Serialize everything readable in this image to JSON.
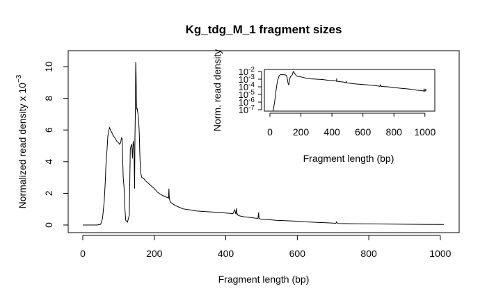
{
  "chart_data": [
    {
      "type": "line",
      "title": "Kg_tdg_M_1 fragment sizes",
      "xlabel": "Fragment length (bp)",
      "ylabel": "Normalized read density x 10",
      "ylabel_exponent": "−3",
      "xlim": [
        0,
        1010
      ],
      "ylim": [
        0,
        10.4
      ],
      "x_ticks": [
        "0",
        "200",
        "400",
        "600",
        "800",
        "1000"
      ],
      "y_ticks": [
        "0",
        "2",
        "4",
        "6",
        "8",
        "10"
      ],
      "grid": false,
      "series": [
        {
          "x": [
            0,
            40,
            50,
            55,
            60,
            63,
            65,
            68,
            70,
            72,
            75,
            78,
            80,
            83,
            85,
            90,
            95,
            100,
            103,
            106,
            108,
            110,
            113,
            116,
            118,
            120,
            125,
            130,
            133,
            135,
            137,
            139,
            141,
            143,
            145,
            146,
            147,
            148,
            149,
            150,
            151,
            152,
            153,
            154,
            155,
            156,
            158,
            160,
            162,
            165,
            170,
            175,
            180,
            185,
            190,
            195,
            200,
            210,
            220,
            230,
            240,
            241,
            242,
            243,
            244,
            245,
            250,
            260,
            270,
            280,
            300,
            320,
            340,
            360,
            380,
            400,
            420,
            425,
            428,
            430,
            431,
            432,
            434,
            436,
            438,
            440,
            445,
            450,
            460,
            470,
            480,
            490,
            492,
            493,
            494,
            496,
            500,
            520,
            540,
            560,
            580,
            600,
            620,
            640,
            660,
            680,
            700,
            708,
            710,
            712,
            720,
            760,
            800,
            850,
            900,
            950,
            1000,
            1010
          ],
          "y": [
            0.0,
            0.0,
            0.05,
            0.4,
            1.5,
            2.8,
            3.9,
            4.8,
            5.6,
            5.9,
            6.15,
            5.95,
            5.9,
            5.75,
            5.65,
            5.5,
            5.3,
            5.2,
            5.1,
            5.2,
            5.5,
            5.45,
            3.0,
            2.2,
            1.0,
            0.3,
            0.18,
            0.6,
            4.8,
            5.0,
            5.1,
            4.2,
            5.3,
            5.0,
            2.3,
            5.6,
            7.0,
            10.3,
            9.5,
            8.0,
            7.3,
            7.4,
            7.2,
            7.1,
            6.9,
            6.7,
            5.8,
            4.2,
            3.3,
            3.0,
            2.95,
            2.8,
            2.7,
            2.6,
            2.5,
            2.4,
            2.3,
            2.05,
            1.9,
            1.8,
            1.7,
            2.3,
            1.7,
            1.6,
            1.5,
            1.45,
            1.35,
            1.22,
            1.12,
            1.02,
            0.95,
            0.88,
            0.85,
            0.82,
            0.8,
            0.76,
            0.72,
            0.95,
            0.7,
            1.05,
            0.68,
            0.7,
            0.62,
            0.6,
            0.58,
            0.57,
            0.55,
            0.52,
            0.5,
            0.47,
            0.44,
            0.42,
            0.8,
            0.42,
            0.4,
            0.38,
            0.37,
            0.34,
            0.3,
            0.28,
            0.26,
            0.24,
            0.2,
            0.18,
            0.16,
            0.14,
            0.12,
            0.11,
            0.2,
            0.1,
            0.09,
            0.08,
            0.07,
            0.06,
            0.05,
            0.04,
            0.03,
            0.03
          ]
        }
      ]
    },
    {
      "type": "line",
      "title": "",
      "xlabel": "Fragment length (bp)",
      "ylabel": "Norm. read density",
      "scale_y": "log",
      "xlim": [
        0,
        1010
      ],
      "ylim_exp": [
        -7,
        -2
      ],
      "x_ticks": [
        "0",
        "200",
        "400",
        "600",
        "800",
        "1000"
      ],
      "y_ticks": [
        {
          "base": "10",
          "exp": "-2"
        },
        {
          "base": "10",
          "exp": "-3"
        },
        {
          "base": "10",
          "exp": "-4"
        },
        {
          "base": "10",
          "exp": "-5"
        },
        {
          "base": "10",
          "exp": "-6"
        },
        {
          "base": "10",
          "exp": "-7"
        }
      ],
      "grid": false,
      "series": [
        {
          "x": [
            18,
            22,
            26,
            30,
            35,
            40,
            45,
            50,
            55,
            60,
            65,
            70,
            75,
            80,
            90,
            100,
            105,
            110,
            115,
            118,
            120,
            123,
            126,
            130,
            135,
            140,
            145,
            150,
            155,
            160,
            170,
            180,
            200,
            220,
            240,
            260,
            300,
            340,
            380,
            420,
            430,
            431,
            432,
            440,
            480,
            490,
            492,
            494,
            500,
            540,
            600,
            660,
            700,
            710,
            712,
            720,
            760,
            800,
            850,
            900,
            950,
            980,
            990,
            995,
            1000,
            1005,
            1010
          ],
          "y_exp": [
            -7.2,
            -7.0,
            -6.5,
            -6.0,
            -5.2,
            -4.4,
            -3.7,
            -3.2,
            -2.8,
            -2.55,
            -2.45,
            -2.4,
            -2.4,
            -2.4,
            -2.42,
            -2.45,
            -2.5,
            -2.7,
            -3.3,
            -3.6,
            -3.7,
            -3.65,
            -3.2,
            -2.8,
            -2.6,
            -2.55,
            -2.4,
            -2.0,
            -2.1,
            -2.25,
            -2.55,
            -2.65,
            -2.7,
            -2.8,
            -2.9,
            -2.95,
            -3.0,
            -3.05,
            -3.15,
            -3.2,
            -3.28,
            -2.9,
            -3.28,
            -3.3,
            -3.4,
            -3.45,
            -3.25,
            -3.45,
            -3.5,
            -3.6,
            -3.7,
            -3.8,
            -3.9,
            -3.95,
            -3.75,
            -3.95,
            -4.0,
            -4.1,
            -4.2,
            -4.3,
            -4.45,
            -4.5,
            -4.55,
            -4.3,
            -4.6,
            -4.35,
            -4.5
          ]
        }
      ]
    }
  ]
}
